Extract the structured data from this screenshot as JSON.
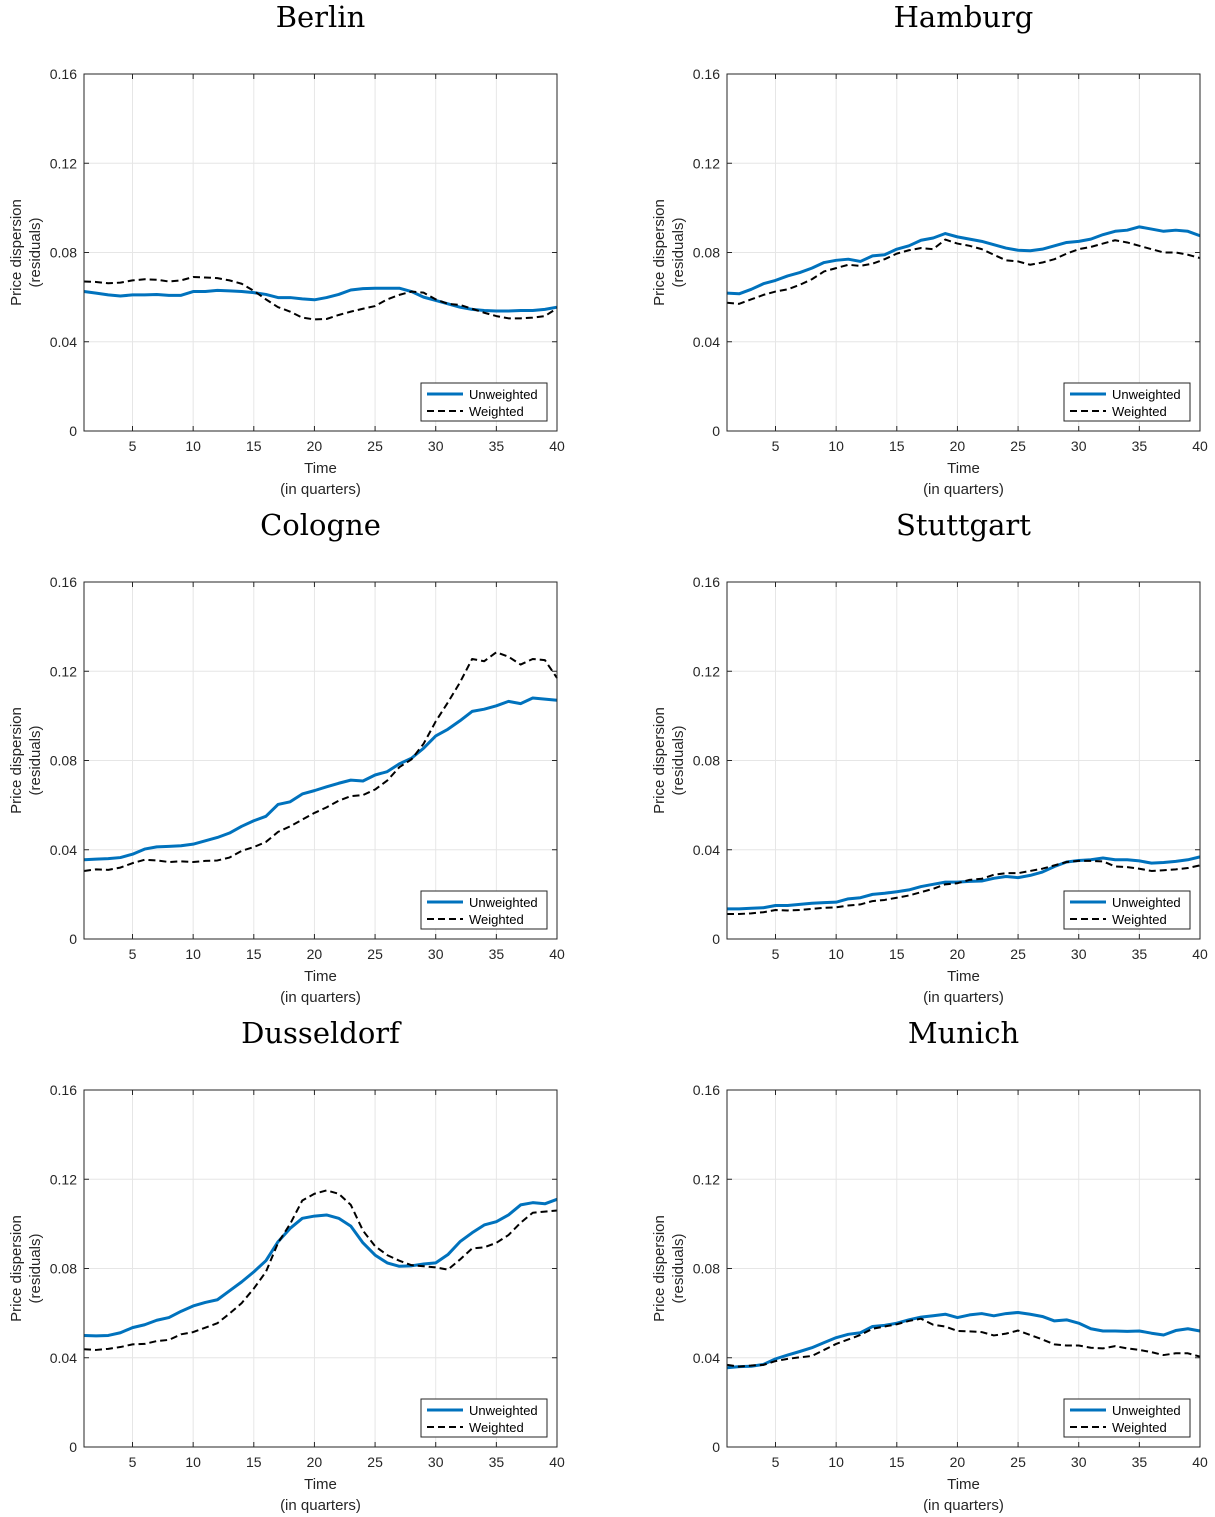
{
  "figure": {
    "ylabel_line1": "Price dispersion",
    "ylabel_line2": "(residuals)",
    "xlabel_line1": "Time",
    "xlabel_line2": "(in quarters)"
  },
  "colors": {
    "unweighted": "#0072BD",
    "weighted": "#000000",
    "grid": "#e6e6e6",
    "axis": "#262626"
  },
  "chart_data": [
    {
      "type": "line",
      "title": "Berlin",
      "xlabel": "Time (in quarters)",
      "ylabel": "Price dispersion (residuals)",
      "xlim": [
        1,
        40
      ],
      "ylim": [
        0,
        0.16
      ],
      "xticks": [
        5,
        10,
        15,
        20,
        25,
        30,
        35,
        40
      ],
      "yticks": [
        0,
        0.04,
        0.08,
        0.12,
        0.16
      ],
      "ytick_labels": [
        "0",
        "0.04",
        "0.08",
        "0.12",
        "0.16"
      ],
      "grid": true,
      "legend_position": "bottom-right",
      "x": [
        1,
        2,
        3,
        4,
        5,
        6,
        7,
        8,
        9,
        10,
        11,
        12,
        13,
        14,
        15,
        16,
        17,
        18,
        19,
        20,
        21,
        22,
        23,
        24,
        25,
        26,
        27,
        28,
        29,
        30,
        31,
        32,
        33,
        34,
        35,
        36,
        37,
        38,
        39,
        40
      ],
      "series": [
        {
          "name": "Unweighted",
          "style": "solid",
          "values": [
            0.0625,
            0.0618,
            0.061,
            0.0605,
            0.061,
            0.061,
            0.0612,
            0.0608,
            0.0608,
            0.0625,
            0.0625,
            0.063,
            0.0628,
            0.0625,
            0.062,
            0.0612,
            0.0598,
            0.0598,
            0.0592,
            0.0588,
            0.0598,
            0.0612,
            0.0632,
            0.0638,
            0.064,
            0.064,
            0.064,
            0.0625,
            0.06,
            0.0585,
            0.057,
            0.0555,
            0.0545,
            0.054,
            0.0538,
            0.0538,
            0.054,
            0.054,
            0.0545,
            0.0555
          ]
        },
        {
          "name": "Weighted",
          "style": "dashed",
          "values": [
            0.067,
            0.0668,
            0.0662,
            0.0665,
            0.0675,
            0.068,
            0.0678,
            0.067,
            0.0675,
            0.069,
            0.0688,
            0.0685,
            0.0675,
            0.066,
            0.0628,
            0.059,
            0.0555,
            0.0535,
            0.0508,
            0.05,
            0.0502,
            0.052,
            0.0535,
            0.0548,
            0.056,
            0.059,
            0.061,
            0.0625,
            0.062,
            0.059,
            0.057,
            0.0565,
            0.0548,
            0.053,
            0.0515,
            0.0505,
            0.0505,
            0.0508,
            0.0515,
            0.055
          ]
        }
      ]
    },
    {
      "type": "line",
      "title": "Hamburg",
      "xlabel": "Time (in quarters)",
      "ylabel": "Price dispersion (residuals)",
      "xlim": [
        1,
        40
      ],
      "ylim": [
        0,
        0.16
      ],
      "xticks": [
        5,
        10,
        15,
        20,
        25,
        30,
        35,
        40
      ],
      "yticks": [
        0,
        0.04,
        0.08,
        0.12,
        0.16
      ],
      "ytick_labels": [
        "0",
        "0.04",
        "0.08",
        "0.12",
        "0.16"
      ],
      "grid": true,
      "legend_position": "bottom-right",
      "x": [
        1,
        2,
        3,
        4,
        5,
        6,
        7,
        8,
        9,
        10,
        11,
        12,
        13,
        14,
        15,
        16,
        17,
        18,
        19,
        20,
        21,
        22,
        23,
        24,
        25,
        26,
        27,
        28,
        29,
        30,
        31,
        32,
        33,
        34,
        35,
        36,
        37,
        38,
        39,
        40
      ],
      "series": [
        {
          "name": "Unweighted",
          "style": "solid",
          "values": [
            0.0618,
            0.0615,
            0.0635,
            0.066,
            0.0675,
            0.0695,
            0.071,
            0.073,
            0.0755,
            0.0765,
            0.077,
            0.076,
            0.0785,
            0.079,
            0.0815,
            0.083,
            0.0855,
            0.0865,
            0.0885,
            0.087,
            0.086,
            0.085,
            0.0835,
            0.082,
            0.081,
            0.0808,
            0.0815,
            0.083,
            0.0845,
            0.085,
            0.086,
            0.088,
            0.0895,
            0.09,
            0.0915,
            0.0905,
            0.0895,
            0.09,
            0.0895,
            0.0875
          ]
        },
        {
          "name": "Weighted",
          "style": "dashed",
          "values": [
            0.0575,
            0.057,
            0.059,
            0.061,
            0.0625,
            0.0635,
            0.0655,
            0.068,
            0.0715,
            0.073,
            0.0745,
            0.074,
            0.075,
            0.077,
            0.0795,
            0.081,
            0.082,
            0.0815,
            0.0858,
            0.084,
            0.083,
            0.0815,
            0.079,
            0.0765,
            0.076,
            0.0745,
            0.0755,
            0.077,
            0.0795,
            0.0815,
            0.0825,
            0.084,
            0.0855,
            0.0845,
            0.083,
            0.0815,
            0.08,
            0.08,
            0.079,
            0.0775
          ]
        }
      ]
    },
    {
      "type": "line",
      "title": "Cologne",
      "xlabel": "Time (in quarters)",
      "ylabel": "Price dispersion (residuals)",
      "xlim": [
        1,
        40
      ],
      "ylim": [
        0,
        0.16
      ],
      "xticks": [
        5,
        10,
        15,
        20,
        25,
        30,
        35,
        40
      ],
      "yticks": [
        0,
        0.04,
        0.08,
        0.12,
        0.16
      ],
      "ytick_labels": [
        "0",
        "0.04",
        "0.08",
        "0.12",
        "0.16"
      ],
      "grid": true,
      "legend_position": "bottom-right",
      "x": [
        1,
        2,
        3,
        4,
        5,
        6,
        7,
        8,
        9,
        10,
        11,
        12,
        13,
        14,
        15,
        16,
        17,
        18,
        19,
        20,
        21,
        22,
        23,
        24,
        25,
        26,
        27,
        28,
        29,
        30,
        31,
        32,
        33,
        34,
        35,
        36,
        37,
        38,
        39,
        40
      ],
      "series": [
        {
          "name": "Unweighted",
          "style": "solid",
          "values": [
            0.0355,
            0.0358,
            0.036,
            0.0365,
            0.038,
            0.0403,
            0.0413,
            0.0415,
            0.0418,
            0.0425,
            0.044,
            0.0455,
            0.0475,
            0.0505,
            0.053,
            0.055,
            0.0603,
            0.0615,
            0.065,
            0.0665,
            0.0682,
            0.0698,
            0.0712,
            0.0708,
            0.0735,
            0.075,
            0.0785,
            0.081,
            0.0855,
            0.091,
            0.094,
            0.0978,
            0.102,
            0.103,
            0.1045,
            0.1065,
            0.1055,
            0.108,
            0.1075,
            0.107
          ]
        },
        {
          "name": "Weighted",
          "style": "dashed",
          "values": [
            0.0305,
            0.0312,
            0.031,
            0.032,
            0.034,
            0.0355,
            0.0352,
            0.0345,
            0.0348,
            0.0345,
            0.035,
            0.0352,
            0.0365,
            0.0395,
            0.0412,
            0.0435,
            0.048,
            0.0505,
            0.0535,
            0.0565,
            0.059,
            0.062,
            0.064,
            0.0645,
            0.067,
            0.071,
            0.077,
            0.0805,
            0.0875,
            0.0975,
            0.106,
            0.115,
            0.1255,
            0.1245,
            0.1285,
            0.1265,
            0.123,
            0.1255,
            0.125,
            0.117
          ]
        }
      ]
    },
    {
      "type": "line",
      "title": "Stuttgart",
      "xlabel": "Time (in quarters)",
      "ylabel": "Price dispersion (residuals)",
      "xlim": [
        1,
        40
      ],
      "ylim": [
        0,
        0.16
      ],
      "xticks": [
        5,
        10,
        15,
        20,
        25,
        30,
        35,
        40
      ],
      "yticks": [
        0,
        0.04,
        0.08,
        0.12,
        0.16
      ],
      "ytick_labels": [
        "0",
        "0.04",
        "0.08",
        "0.12",
        "0.16"
      ],
      "grid": true,
      "legend_position": "bottom-right",
      "x": [
        1,
        2,
        3,
        4,
        5,
        6,
        7,
        8,
        9,
        10,
        11,
        12,
        13,
        14,
        15,
        16,
        17,
        18,
        19,
        20,
        21,
        22,
        23,
        24,
        25,
        26,
        27,
        28,
        29,
        30,
        31,
        32,
        33,
        34,
        35,
        36,
        37,
        38,
        39,
        40
      ],
      "series": [
        {
          "name": "Unweighted",
          "style": "solid",
          "values": [
            0.0135,
            0.0135,
            0.0138,
            0.014,
            0.015,
            0.015,
            0.0155,
            0.016,
            0.0163,
            0.0165,
            0.018,
            0.0185,
            0.02,
            0.0205,
            0.0212,
            0.022,
            0.0235,
            0.0245,
            0.0255,
            0.0255,
            0.0258,
            0.026,
            0.0272,
            0.028,
            0.0275,
            0.0285,
            0.03,
            0.0325,
            0.0345,
            0.0352,
            0.0355,
            0.0363,
            0.0355,
            0.0355,
            0.035,
            0.034,
            0.0343,
            0.0348,
            0.0355,
            0.0368
          ]
        },
        {
          "name": "Weighted",
          "style": "dashed",
          "values": [
            0.0112,
            0.0112,
            0.0115,
            0.012,
            0.013,
            0.0128,
            0.013,
            0.0135,
            0.014,
            0.0142,
            0.015,
            0.0155,
            0.017,
            0.0175,
            0.0185,
            0.0195,
            0.021,
            0.0225,
            0.0245,
            0.025,
            0.0265,
            0.027,
            0.0288,
            0.0295,
            0.0295,
            0.0305,
            0.0315,
            0.033,
            0.0345,
            0.035,
            0.035,
            0.0348,
            0.0325,
            0.0322,
            0.0315,
            0.0305,
            0.0308,
            0.0312,
            0.0318,
            0.033
          ]
        }
      ]
    },
    {
      "type": "line",
      "title": "Dusseldorf",
      "xlabel": "Time (in quarters)",
      "ylabel": "Price dispersion (residuals)",
      "xlim": [
        1,
        40
      ],
      "ylim": [
        0,
        0.16
      ],
      "xticks": [
        5,
        10,
        15,
        20,
        25,
        30,
        35,
        40
      ],
      "yticks": [
        0,
        0.04,
        0.08,
        0.12,
        0.16
      ],
      "ytick_labels": [
        "0",
        "0.04",
        "0.08",
        "0.12",
        "0.16"
      ],
      "grid": true,
      "legend_position": "bottom-right",
      "x": [
        1,
        2,
        3,
        4,
        5,
        6,
        7,
        8,
        9,
        10,
        11,
        12,
        13,
        14,
        15,
        16,
        17,
        18,
        19,
        20,
        21,
        22,
        23,
        24,
        25,
        26,
        27,
        28,
        29,
        30,
        31,
        32,
        33,
        34,
        35,
        36,
        37,
        38,
        39,
        40
      ],
      "series": [
        {
          "name": "Unweighted",
          "style": "solid",
          "values": [
            0.05,
            0.0498,
            0.05,
            0.0512,
            0.0535,
            0.0548,
            0.0568,
            0.058,
            0.0608,
            0.0632,
            0.0648,
            0.066,
            0.07,
            0.074,
            0.0785,
            0.0835,
            0.092,
            0.098,
            0.1025,
            0.1035,
            0.104,
            0.1025,
            0.099,
            0.0915,
            0.086,
            0.0825,
            0.081,
            0.0812,
            0.082,
            0.0825,
            0.0862,
            0.092,
            0.096,
            0.0995,
            0.101,
            0.104,
            0.1085,
            0.1095,
            0.109,
            0.111
          ]
        },
        {
          "name": "Weighted",
          "style": "dashed",
          "values": [
            0.0438,
            0.0435,
            0.044,
            0.0448,
            0.046,
            0.0462,
            0.0475,
            0.048,
            0.0505,
            0.0515,
            0.0535,
            0.0555,
            0.0598,
            0.0645,
            0.071,
            0.0785,
            0.0915,
            0.1,
            0.1105,
            0.1135,
            0.115,
            0.1135,
            0.1085,
            0.097,
            0.09,
            0.086,
            0.0835,
            0.0815,
            0.081,
            0.0805,
            0.0795,
            0.084,
            0.089,
            0.0895,
            0.0915,
            0.095,
            0.1005,
            0.105,
            0.1055,
            0.106
          ]
        }
      ]
    },
    {
      "type": "line",
      "title": "Munich",
      "xlabel": "Time (in quarters)",
      "ylabel": "Price dispersion (residuals)",
      "xlim": [
        1,
        40
      ],
      "ylim": [
        0,
        0.16
      ],
      "xticks": [
        5,
        10,
        15,
        20,
        25,
        30,
        35,
        40
      ],
      "yticks": [
        0,
        0.04,
        0.08,
        0.12,
        0.16
      ],
      "ytick_labels": [
        "0",
        "0.04",
        "0.08",
        "0.12",
        "0.16"
      ],
      "grid": true,
      "legend_position": "bottom-right",
      "x": [
        1,
        2,
        3,
        4,
        5,
        6,
        7,
        8,
        9,
        10,
        11,
        12,
        13,
        14,
        15,
        16,
        17,
        18,
        19,
        20,
        21,
        22,
        23,
        24,
        25,
        26,
        27,
        28,
        29,
        30,
        31,
        32,
        33,
        34,
        35,
        36,
        37,
        38,
        39,
        40
      ],
      "series": [
        {
          "name": "Unweighted",
          "style": "solid",
          "values": [
            0.0355,
            0.036,
            0.0362,
            0.037,
            0.0395,
            0.0412,
            0.0428,
            0.0445,
            0.0468,
            0.049,
            0.0505,
            0.0512,
            0.054,
            0.0545,
            0.0555,
            0.057,
            0.0582,
            0.0588,
            0.0595,
            0.058,
            0.0592,
            0.0598,
            0.0588,
            0.0598,
            0.0603,
            0.0595,
            0.0585,
            0.0565,
            0.057,
            0.0555,
            0.053,
            0.052,
            0.052,
            0.0518,
            0.052,
            0.051,
            0.0502,
            0.0522,
            0.053,
            0.052
          ]
        },
        {
          "name": "Weighted",
          "style": "dashed",
          "values": [
            0.0368,
            0.036,
            0.0365,
            0.0368,
            0.0385,
            0.0395,
            0.0402,
            0.0408,
            0.0435,
            0.0462,
            0.0482,
            0.0502,
            0.053,
            0.054,
            0.055,
            0.0565,
            0.0575,
            0.0548,
            0.054,
            0.052,
            0.0518,
            0.0515,
            0.05,
            0.0508,
            0.0522,
            0.0502,
            0.0482,
            0.046,
            0.0455,
            0.0455,
            0.0445,
            0.0442,
            0.0452,
            0.0442,
            0.0435,
            0.0425,
            0.0412,
            0.042,
            0.042,
            0.0405
          ]
        }
      ]
    }
  ]
}
